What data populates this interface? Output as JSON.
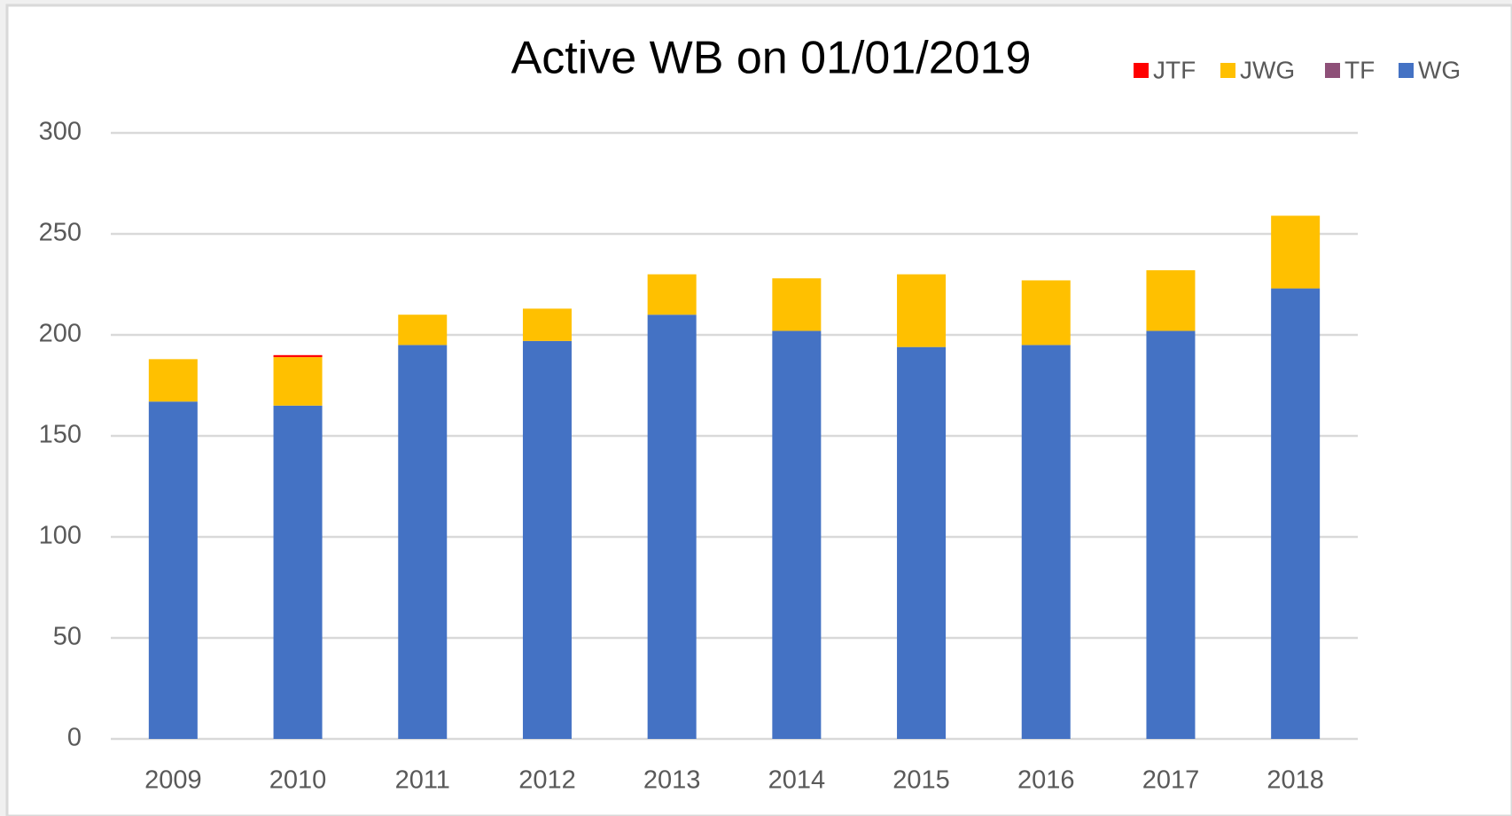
{
  "chart_data": {
    "type": "stacked_bar",
    "title": "Active WB on 01/01/2019",
    "categories": [
      "2009",
      "2010",
      "2011",
      "2012",
      "2013",
      "2014",
      "2015",
      "2016",
      "2017",
      "2018"
    ],
    "series": [
      {
        "name": "JTF",
        "color": "#ff0000",
        "values": [
          0,
          1,
          0,
          0,
          0,
          0,
          0,
          0,
          0,
          0
        ]
      },
      {
        "name": "JWG",
        "color": "#ffc000",
        "values": [
          21,
          24,
          15,
          16,
          20,
          26,
          36,
          32,
          30,
          36
        ]
      },
      {
        "name": "TF",
        "color": "#8e5078",
        "values": [
          0,
          0,
          0,
          0,
          0,
          0,
          0,
          0,
          0,
          0
        ]
      },
      {
        "name": "WG",
        "color": "#4472c4",
        "values": [
          167,
          165,
          195,
          197,
          210,
          202,
          194,
          195,
          202,
          223
        ]
      }
    ],
    "ylim": [
      0,
      300
    ],
    "yticks": [
      0,
      50,
      100,
      150,
      200,
      250,
      300
    ],
    "grid": true,
    "legend": "top-right"
  }
}
